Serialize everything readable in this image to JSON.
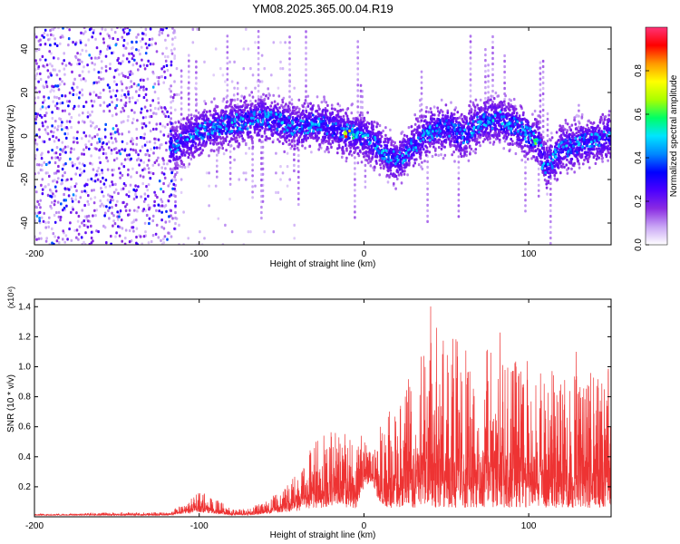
{
  "title": "YM08.2025.365.00.04.R19",
  "chart_data": [
    {
      "type": "heatmap",
      "xlabel": "Height of straight line (km)",
      "ylabel": "Frequency (Hz)",
      "xlim": [
        -200,
        150
      ],
      "ylim": [
        -50,
        50
      ],
      "x_ticks": [
        -200,
        -100,
        0,
        100
      ],
      "y_ticks": [
        -40,
        -20,
        0,
        20,
        40
      ],
      "x_tick_labels": [
        "-200",
        "-100",
        "0",
        "100"
      ],
      "y_tick_labels": [
        "-40",
        "-20",
        "0",
        "20",
        "40"
      ],
      "ridge": {
        "x": [
          -115,
          -100,
          -80,
          -60,
          -40,
          -30,
          -20,
          -10,
          0,
          10,
          20,
          30,
          40,
          50,
          60,
          70,
          80,
          90,
          100,
          105,
          110,
          120,
          130,
          140,
          150
        ],
        "y": [
          -5,
          2,
          6,
          8,
          4,
          6,
          4,
          1,
          0,
          -6,
          -12,
          -4,
          2,
          4,
          0,
          6,
          8,
          5,
          0,
          -2,
          -14,
          -6,
          -4,
          -2,
          0
        ]
      },
      "colorbar": {
        "label": "Normalized spectral amplitude",
        "range": [
          0,
          1
        ],
        "ticks": [
          0.0,
          0.2,
          0.4,
          0.6,
          0.8
        ],
        "tick_labels": [
          "0.0",
          "0.2",
          "0.4",
          "0.6",
          "0.8"
        ],
        "colormap": [
          "#ffffff",
          "#c9a6f5",
          "#8a2be2",
          "#4b00ff",
          "#0000ff",
          "#0088ff",
          "#00e5ff",
          "#00ff66",
          "#aaff00",
          "#ffff00",
          "#ff9900",
          "#ff0000",
          "#ff3377"
        ]
      }
    },
    {
      "type": "line",
      "xlabel": "Height of straight line (km)",
      "ylabel": "SNR (10 * v/v)",
      "y_scale_label": "(x10⁴)",
      "xlim": [
        -200,
        150
      ],
      "ylim": [
        0,
        1.45
      ],
      "x_ticks": [
        -200,
        -100,
        0,
        100
      ],
      "y_ticks": [
        0.2,
        0.4,
        0.6,
        0.8,
        1.0,
        1.2,
        1.4
      ],
      "x_tick_labels": [
        "-200",
        "-100",
        "0",
        "100"
      ],
      "y_tick_labels": [
        "0.2",
        "0.4",
        "0.6",
        "0.8",
        "1.0",
        "1.2",
        "1.4"
      ],
      "color": "#ee3333",
      "envelope": {
        "x": [
          -200,
          -180,
          -160,
          -140,
          -120,
          -110,
          -100,
          -90,
          -80,
          -70,
          -60,
          -50,
          -40,
          -35,
          -30,
          -25,
          -20,
          -15,
          -10,
          -5,
          0,
          5,
          10,
          15,
          20,
          25,
          30,
          40,
          50,
          60,
          70,
          80,
          90,
          100,
          110,
          120,
          130,
          140,
          150
        ],
        "y_max": [
          0.02,
          0.02,
          0.03,
          0.03,
          0.03,
          0.08,
          0.17,
          0.12,
          0.05,
          0.06,
          0.1,
          0.18,
          0.3,
          0.4,
          0.5,
          0.56,
          0.65,
          0.56,
          0.6,
          0.5,
          0.56,
          0.4,
          0.6,
          0.7,
          0.72,
          0.88,
          1.0,
          1.43,
          1.2,
          1.2,
          1.08,
          1.28,
          1.08,
          1.05,
          1.04,
          0.96,
          1.14,
          0.92,
          1.0
        ],
        "y_min": [
          0.01,
          0.01,
          0.01,
          0.01,
          0.01,
          0.02,
          0.03,
          0.02,
          0.01,
          0.01,
          0.02,
          0.03,
          0.04,
          0.05,
          0.06,
          0.06,
          0.07,
          0.06,
          0.06,
          0.05,
          0.2,
          0.24,
          0.06,
          0.06,
          0.06,
          0.06,
          0.06,
          0.06,
          0.06,
          0.06,
          0.06,
          0.06,
          0.06,
          0.06,
          0.06,
          0.06,
          0.06,
          0.06,
          0.06
        ]
      }
    }
  ]
}
